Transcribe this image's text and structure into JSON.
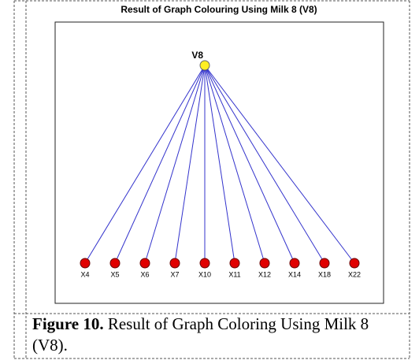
{
  "figure": {
    "title": "Result of Graph Colouring Using Milk 8 (V8)",
    "root": "V8",
    "leaves": [
      "X4",
      "X5",
      "X6",
      "X7",
      "X10",
      "X11",
      "X12",
      "X14",
      "X18",
      "X22"
    ]
  },
  "caption": {
    "label": "Figure 10.",
    "text": "Result of Graph Coloring Using Milk 8 (V8)."
  }
}
